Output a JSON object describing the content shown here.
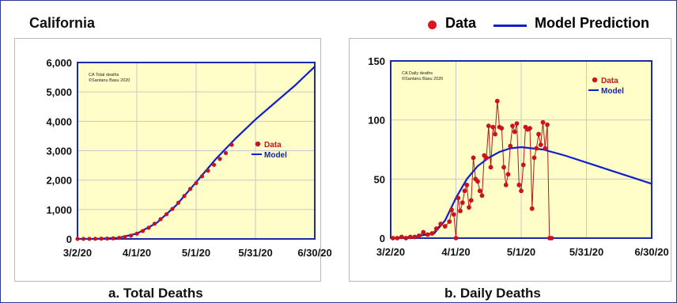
{
  "title": "California",
  "legend": {
    "data_label": "Data",
    "model_label": "Model Prediction",
    "data_color": "#e0141e",
    "model_color": "#1020c8"
  },
  "captions": {
    "a": "a. Total Deaths",
    "b": "b. Daily Deaths"
  },
  "chart_data": [
    {
      "type": "line",
      "caption": "a. Total Deaths",
      "inset_text": [
        "CA Total deaths",
        "©Santanu Basu 2020"
      ],
      "legend": [
        "Data",
        "Model"
      ],
      "legend_position": "right",
      "x_ticks": [
        "3/2/20",
        "4/1/20",
        "5/1/20",
        "5/31/20",
        "6/30/20"
      ],
      "xlim": [
        "2020-03-02",
        "2020-06-30"
      ],
      "ylim": [
        0,
        6000
      ],
      "y_ticks": [
        "0",
        "1,000",
        "2,000",
        "3,000",
        "4,000",
        "5,000",
        "6,000"
      ],
      "grid": true,
      "series": [
        {
          "name": "Data",
          "marker": "circle",
          "dates": [
            "2020-03-02",
            "2020-03-05",
            "2020-03-08",
            "2020-03-11",
            "2020-03-14",
            "2020-03-17",
            "2020-03-20",
            "2020-03-23",
            "2020-03-26",
            "2020-03-29",
            "2020-04-01",
            "2020-04-04",
            "2020-04-07",
            "2020-04-10",
            "2020-04-13",
            "2020-04-16",
            "2020-04-19",
            "2020-04-22",
            "2020-04-25",
            "2020-04-28",
            "2020-05-01",
            "2020-05-04",
            "2020-05-07",
            "2020-05-10",
            "2020-05-13",
            "2020-05-16",
            "2020-05-19"
          ],
          "values": [
            1,
            2,
            3,
            5,
            8,
            12,
            20,
            35,
            65,
            110,
            180,
            270,
            380,
            520,
            670,
            840,
            1020,
            1230,
            1460,
            1700,
            1900,
            2130,
            2320,
            2520,
            2720,
            2920,
            3200
          ]
        },
        {
          "name": "Model",
          "dates": [
            "2020-03-02",
            "2020-03-12",
            "2020-03-22",
            "2020-04-01",
            "2020-04-11",
            "2020-04-21",
            "2020-05-01",
            "2020-05-11",
            "2020-05-21",
            "2020-05-31",
            "2020-06-10",
            "2020-06-20",
            "2020-06-30"
          ],
          "values": [
            0,
            5,
            30,
            180,
            540,
            1150,
            1930,
            2720,
            3420,
            4060,
            4640,
            5220,
            5860
          ]
        }
      ]
    },
    {
      "type": "line",
      "caption": "b. Daily Deaths",
      "inset_text": [
        "CA Daily deaths",
        "©Santanu Basu 2020"
      ],
      "legend": [
        "Data",
        "Model"
      ],
      "legend_position": "top-right",
      "x_ticks": [
        "3/2/20",
        "4/1/20",
        "5/1/20",
        "5/31/20",
        "6/30/20"
      ],
      "xlim": [
        "2020-03-02",
        "2020-06-30"
      ],
      "ylim": [
        0,
        150
      ],
      "y_ticks": [
        "0",
        "50",
        "100",
        "150"
      ],
      "grid": true,
      "series": [
        {
          "name": "Data",
          "marker": "circle-line",
          "dates": [
            "2020-03-03",
            "2020-03-05",
            "2020-03-07",
            "2020-03-09",
            "2020-03-11",
            "2020-03-13",
            "2020-03-15",
            "2020-03-17",
            "2020-03-19",
            "2020-03-21",
            "2020-03-23",
            "2020-03-25",
            "2020-03-27",
            "2020-03-29",
            "2020-03-30",
            "2020-03-31",
            "2020-04-01",
            "2020-04-02",
            "2020-04-03",
            "2020-04-04",
            "2020-04-05",
            "2020-04-06",
            "2020-04-07",
            "2020-04-08",
            "2020-04-09",
            "2020-04-10",
            "2020-04-11",
            "2020-04-12",
            "2020-04-13",
            "2020-04-14",
            "2020-04-15",
            "2020-04-16",
            "2020-04-17",
            "2020-04-18",
            "2020-04-19",
            "2020-04-20",
            "2020-04-21",
            "2020-04-22",
            "2020-04-23",
            "2020-04-24",
            "2020-04-25",
            "2020-04-26",
            "2020-04-27",
            "2020-04-28",
            "2020-04-29",
            "2020-04-30",
            "2020-05-01",
            "2020-05-02",
            "2020-05-03",
            "2020-05-04",
            "2020-05-05",
            "2020-05-06",
            "2020-05-07",
            "2020-05-08",
            "2020-05-09",
            "2020-05-10",
            "2020-05-11",
            "2020-05-12",
            "2020-05-13",
            "2020-05-14",
            "2020-05-15"
          ],
          "values": [
            0,
            0,
            1,
            0,
            1,
            1,
            2,
            5,
            3,
            4,
            8,
            12,
            10,
            14,
            24,
            20,
            0,
            34,
            23,
            30,
            40,
            45,
            26,
            32,
            68,
            50,
            48,
            40,
            36,
            70,
            68,
            95,
            60,
            94,
            88,
            116,
            94,
            93,
            60,
            45,
            54,
            78,
            95,
            90,
            97,
            45,
            40,
            62,
            94,
            92,
            93,
            25,
            68,
            76,
            88,
            79,
            98,
            76,
            96,
            0,
            0
          ]
        },
        {
          "name": "Model",
          "dates": [
            "2020-03-02",
            "2020-03-12",
            "2020-03-22",
            "2020-03-27",
            "2020-04-01",
            "2020-04-06",
            "2020-04-11",
            "2020-04-16",
            "2020-04-21",
            "2020-04-26",
            "2020-05-01",
            "2020-05-06",
            "2020-05-11",
            "2020-05-21",
            "2020-05-31",
            "2020-06-10",
            "2020-06-20",
            "2020-06-30"
          ],
          "values": [
            0,
            1,
            4,
            15,
            34,
            50,
            61,
            68,
            73,
            76,
            77,
            76,
            75,
            70,
            64,
            58,
            52,
            46
          ]
        }
      ]
    }
  ]
}
